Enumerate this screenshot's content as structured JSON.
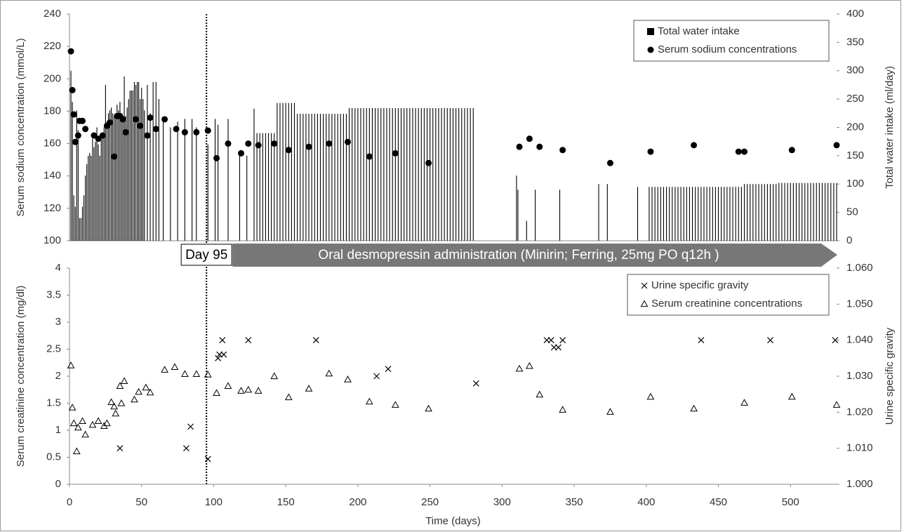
{
  "chart_data": [
    {
      "type": "bar",
      "ylabel": "Serum sodium concentration (mmol/L)",
      "y2label": "Total water intake (ml/day)",
      "xlim": [
        0,
        532
      ],
      "ylim": [
        100,
        240
      ],
      "yticks": [
        100,
        120,
        140,
        160,
        180,
        200,
        220,
        240
      ],
      "y2lim": [
        0,
        400
      ],
      "y2ticks": [
        0,
        50,
        100,
        150,
        200,
        250,
        300,
        350,
        400
      ],
      "legend": "top-right",
      "annotation": {
        "x": 95,
        "label": "Day 95",
        "arrow_text": "Oral desmopressin administration (Minirin; Ferring, 25mg PO q12h )"
      },
      "series": [
        {
          "name": "Total water intake",
          "type": "bar",
          "axis": "y2",
          "color": "#000000",
          "x": [
            1,
            2,
            3,
            4,
            5,
            6,
            7,
            8,
            9,
            10,
            11,
            12,
            13,
            14,
            15,
            16,
            17,
            18,
            19,
            20,
            21,
            22,
            23,
            24,
            25,
            26,
            27,
            28,
            29,
            30,
            31,
            32,
            33,
            34,
            35,
            36,
            37,
            38,
            39,
            40,
            41,
            42,
            43,
            44,
            45,
            46,
            47,
            48,
            49,
            50,
            51,
            52,
            54,
            56,
            58,
            60,
            62,
            65,
            70,
            75,
            80,
            85,
            88,
            96,
            101,
            103,
            110,
            118,
            123,
            128,
            130,
            132,
            134,
            136,
            138,
            140,
            142,
            144,
            146,
            148,
            150,
            152,
            154,
            156,
            158,
            160,
            162,
            164,
            166,
            168,
            170,
            172,
            174,
            176,
            178,
            180,
            182,
            184,
            186,
            188,
            190,
            192,
            194,
            196,
            198,
            200,
            202,
            204,
            206,
            208,
            210,
            212,
            214,
            216,
            218,
            220,
            222,
            224,
            226,
            228,
            230,
            232,
            234,
            236,
            238,
            240,
            242,
            244,
            246,
            248,
            250,
            252,
            254,
            256,
            258,
            260,
            262,
            264,
            266,
            268,
            270,
            272,
            274,
            276,
            278,
            280,
            310,
            311,
            317,
            323,
            340,
            367,
            373,
            394,
            402,
            404,
            406,
            408,
            410,
            412,
            414,
            416,
            418,
            420,
            422,
            424,
            426,
            428,
            430,
            432,
            434,
            436,
            438,
            440,
            442,
            444,
            446,
            448,
            450,
            452,
            454,
            456,
            458,
            460,
            462,
            464,
            466,
            468,
            470,
            472,
            474,
            476,
            478,
            480,
            482,
            484,
            486,
            488,
            490,
            492,
            494,
            496,
            498,
            500,
            502,
            504,
            506,
            508,
            510,
            512,
            514,
            516,
            518,
            520,
            522,
            524,
            526,
            528,
            530,
            532
          ],
          "values": [
            300,
            245,
            80,
            60,
            230,
            195,
            40,
            40,
            60,
            80,
            115,
            135,
            150,
            155,
            150,
            180,
            165,
            175,
            200,
            170,
            150,
            180,
            190,
            200,
            275,
            210,
            225,
            230,
            235,
            225,
            220,
            215,
            240,
            230,
            245,
            225,
            210,
            290,
            220,
            235,
            250,
            265,
            265,
            265,
            280,
            275,
            280,
            280,
            250,
            270,
            250,
            230,
            275,
            225,
            280,
            280,
            250,
            215,
            200,
            210,
            215,
            215,
            200,
            170,
            215,
            205,
            215,
            150,
            150,
            233,
            190,
            190,
            190,
            190,
            190,
            190,
            190,
            243,
            243,
            243,
            243,
            243,
            243,
            243,
            224,
            224,
            224,
            224,
            224,
            224,
            224,
            224,
            224,
            224,
            224,
            224,
            224,
            224,
            224,
            224,
            224,
            224,
            234,
            234,
            234,
            234,
            234,
            234,
            234,
            234,
            234,
            234,
            234,
            234,
            234,
            234,
            234,
            234,
            234,
            234,
            234,
            234,
            234,
            234,
            234,
            234,
            234,
            234,
            234,
            234,
            234,
            234,
            234,
            234,
            234,
            234,
            234,
            234,
            234,
            234,
            234,
            234,
            234,
            234,
            234,
            234,
            115,
            90,
            35,
            90,
            90,
            100,
            100,
            95,
            95,
            95,
            95,
            95,
            95,
            95,
            95,
            95,
            95,
            95,
            95,
            95,
            95,
            95,
            95,
            95,
            95,
            95,
            95,
            95,
            95,
            95,
            95,
            95,
            95,
            95,
            95,
            95,
            95,
            95,
            95,
            95,
            95,
            100,
            100,
            100,
            100,
            100,
            100,
            100,
            100,
            100,
            100,
            100,
            100,
            102,
            102,
            102,
            102,
            102,
            102,
            102,
            102,
            102,
            102,
            102,
            102,
            102,
            102,
            102,
            102,
            102,
            102,
            102,
            102,
            102
          ]
        },
        {
          "name": "Serum sodium concentrations",
          "type": "scatter",
          "marker": "circle",
          "color": "#000000",
          "x": [
            1,
            2,
            3,
            4,
            6,
            7,
            9,
            11,
            17,
            20,
            23,
            26,
            28,
            31,
            33,
            35,
            37,
            39,
            46,
            49,
            54,
            56,
            60,
            66,
            74,
            80,
            88,
            96,
            102,
            110,
            119,
            124,
            131,
            142,
            152,
            166,
            180,
            193,
            208,
            226,
            249,
            312,
            319,
            326,
            342,
            375,
            403,
            433,
            464,
            468,
            501,
            532
          ],
          "values": [
            217,
            193,
            178,
            161,
            165,
            174,
            174,
            169,
            165,
            163,
            165,
            171,
            173,
            152,
            177,
            177,
            175,
            167,
            175,
            171,
            165,
            176,
            169,
            175,
            169,
            167,
            167,
            168,
            151,
            160,
            154,
            160,
            159,
            160,
            156,
            158,
            160,
            161,
            152,
            154,
            148,
            158,
            163,
            158,
            156,
            148,
            155,
            159,
            155,
            155,
            156,
            159
          ]
        }
      ]
    },
    {
      "type": "scatter",
      "xlabel": "Time (days)",
      "ylabel": "Serum creatinine concentration (mg/dl)",
      "y2label": "Urine specific gravity",
      "xlim": [
        0,
        532
      ],
      "xticks": [
        0,
        50,
        100,
        150,
        200,
        250,
        300,
        350,
        400,
        450,
        500
      ],
      "ylim": [
        0,
        4
      ],
      "yticks": [
        0,
        0.5,
        1,
        1.5,
        2,
        2.5,
        3,
        3.5,
        4
      ],
      "y2lim": [
        1.0,
        1.06
      ],
      "y2ticks": [
        {
          "value": 1.0,
          "label": "1.000"
        },
        {
          "value": 1.01,
          "label": "1.010"
        },
        {
          "value": 1.02,
          "label": "1.020"
        },
        {
          "value": 1.03,
          "label": "1.030"
        },
        {
          "value": 1.04,
          "label": "1.040"
        },
        {
          "value": 1.05,
          "label": "1.050"
        },
        {
          "value": 1.06,
          "label": "1.060"
        }
      ],
      "legend": "top-right",
      "series": [
        {
          "name": "Urine specific gravity",
          "type": "scatter",
          "marker": "cross",
          "axis": "y2",
          "color": "#000000",
          "x": [
            35,
            81,
            84,
            96,
            103,
            104,
            106,
            107,
            124,
            171,
            213,
            221,
            282,
            331,
            334,
            336,
            339,
            342,
            438,
            486,
            531
          ],
          "values": [
            1.01,
            1.01,
            1.016,
            1.007,
            1.035,
            1.036,
            1.04,
            1.036,
            1.04,
            1.04,
            1.03,
            1.032,
            1.028,
            1.04,
            1.04,
            1.038,
            1.038,
            1.04,
            1.04,
            1.04,
            1.04
          ]
        },
        {
          "name": "Serum creatinine concentrations",
          "type": "scatter",
          "marker": "triangle",
          "color": "#000000",
          "x": [
            1,
            2,
            3,
            5,
            6,
            9,
            11,
            16,
            20,
            24,
            26,
            29,
            31,
            32,
            35,
            36,
            38,
            45,
            48,
            53,
            56,
            66,
            73,
            80,
            88,
            96,
            102,
            110,
            119,
            124,
            131,
            142,
            152,
            166,
            180,
            193,
            208,
            226,
            249,
            312,
            319,
            326,
            342,
            375,
            403,
            433,
            468,
            501,
            532
          ],
          "values": [
            2.2,
            1.42,
            1.13,
            0.61,
            1.05,
            1.17,
            0.92,
            1.1,
            1.17,
            1.08,
            1.13,
            1.52,
            1.44,
            1.31,
            1.82,
            1.5,
            1.91,
            1.57,
            1.71,
            1.79,
            1.7,
            2.12,
            2.17,
            2.04,
            2.04,
            2.03,
            1.69,
            1.82,
            1.73,
            1.75,
            1.73,
            2.0,
            1.61,
            1.77,
            2.05,
            1.94,
            1.53,
            1.47,
            1.4,
            2.14,
            2.19,
            1.66,
            1.38,
            1.34,
            1.62,
            1.4,
            1.51,
            1.62,
            1.47
          ]
        }
      ]
    }
  ]
}
